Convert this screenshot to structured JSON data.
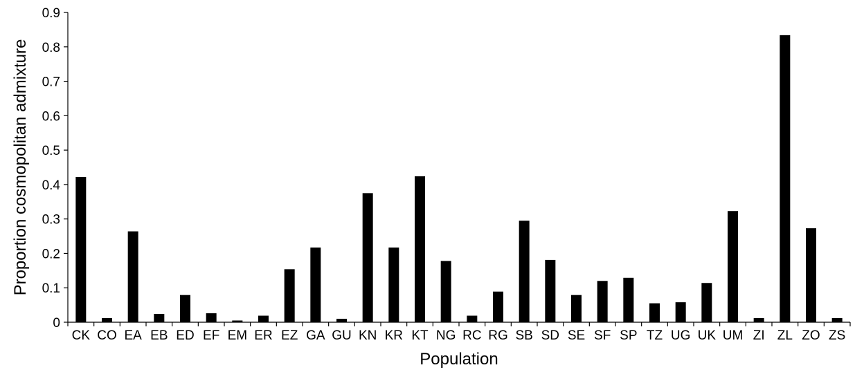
{
  "chart_data": {
    "type": "bar",
    "title": "",
    "xlabel": "Population",
    "ylabel": "Proportion cosmopolitan admixture",
    "ylim": [
      0,
      0.9
    ],
    "yticks": [
      0,
      0.1,
      0.2,
      0.3,
      0.4,
      0.5,
      0.6,
      0.7,
      0.8,
      0.9
    ],
    "ytick_labels": [
      "0",
      "0.1",
      "0.2",
      "0.3",
      "0.4",
      "0.5",
      "0.6",
      "0.7",
      "0.8",
      "0.9"
    ],
    "grid": false,
    "legend": "none",
    "bar_color": "#000000",
    "categories": [
      "CK",
      "CO",
      "EA",
      "EB",
      "ED",
      "EF",
      "EM",
      "ER",
      "EZ",
      "GA",
      "GU",
      "KN",
      "KR",
      "KT",
      "NG",
      "RC",
      "RG",
      "SB",
      "SD",
      "SE",
      "SF",
      "SP",
      "TZ",
      "UG",
      "UK",
      "UM",
      "ZI",
      "ZL",
      "ZO",
      "ZS"
    ],
    "values": [
      0.422,
      0.012,
      0.264,
      0.024,
      0.079,
      0.026,
      0.005,
      0.019,
      0.154,
      0.217,
      0.01,
      0.375,
      0.217,
      0.424,
      0.178,
      0.019,
      0.089,
      0.295,
      0.181,
      0.079,
      0.12,
      0.129,
      0.055,
      0.058,
      0.114,
      0.323,
      0.012,
      0.834,
      0.273,
      0.012
    ]
  }
}
